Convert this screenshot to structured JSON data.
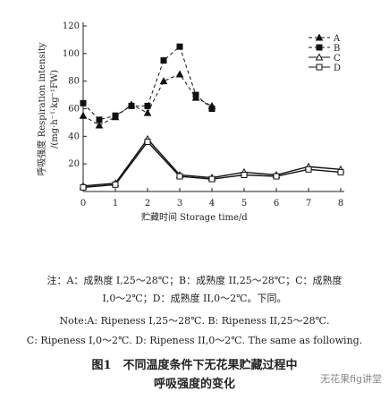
{
  "chart_data": {
    "type": "line",
    "y_label": "呼吸强度 Respiration intensity",
    "y_label_unit": "/(mg·h⁻¹·kg⁻¹FW)",
    "x_label": "贮藏时间 Storage time/d",
    "xlim": [
      0,
      8
    ],
    "xticks": [
      0,
      1,
      2,
      3,
      4,
      5,
      6,
      7,
      8
    ],
    "ylim": [
      0,
      120
    ],
    "yticks": [
      20,
      40,
      60,
      80,
      100,
      120
    ],
    "legend": "upper right",
    "series": [
      {
        "name": "A",
        "color": "#111111",
        "marker": "triangle",
        "filled": true,
        "dashed": true,
        "x": [
          0,
          0.5,
          1,
          1.5,
          2,
          2.5,
          3,
          3.5,
          4
        ],
        "values": [
          55,
          48,
          54,
          63,
          57,
          80,
          85,
          68,
          62
        ]
      },
      {
        "name": "B",
        "color": "#111111",
        "marker": "square",
        "filled": true,
        "dashed": true,
        "x": [
          0,
          0.5,
          1,
          1.5,
          2,
          2.5,
          3,
          3.5,
          4
        ],
        "values": [
          64,
          52,
          55,
          62,
          62,
          95,
          105,
          70,
          60
        ]
      },
      {
        "name": "C",
        "color": "#111111",
        "marker": "triangle",
        "filled": false,
        "dashed": false,
        "x": [
          0,
          1,
          2,
          3,
          4,
          5,
          6,
          7,
          8
        ],
        "values": [
          4,
          6,
          38,
          12,
          10,
          14,
          12,
          18,
          16
        ]
      },
      {
        "name": "D",
        "color": "#111111",
        "marker": "square",
        "filled": false,
        "dashed": false,
        "x": [
          0,
          1,
          2,
          3,
          4,
          5,
          6,
          7,
          8
        ],
        "values": [
          3,
          5,
          36,
          11,
          9,
          12,
          11,
          16,
          14
        ]
      }
    ]
  },
  "notes": [
    "注：A：成熟度 I,25～28℃；B：成熟度 II,25～28℃；C：成熟度",
    "I,0～2℃；D：成熟度 II,0～2℃。下同。",
    "Note:A: Ripeness I,25～28℃. B: Ripeness II,25～28℃.",
    "C: Ripeness I,0～2℃. D: Ripeness II,0～2℃. The same as following."
  ],
  "figure_title": [
    "图1　不同温度条件下无花果贮藏过程中",
    "呼吸强度的变化"
  ],
  "watermark": "无花果fig讲堂"
}
